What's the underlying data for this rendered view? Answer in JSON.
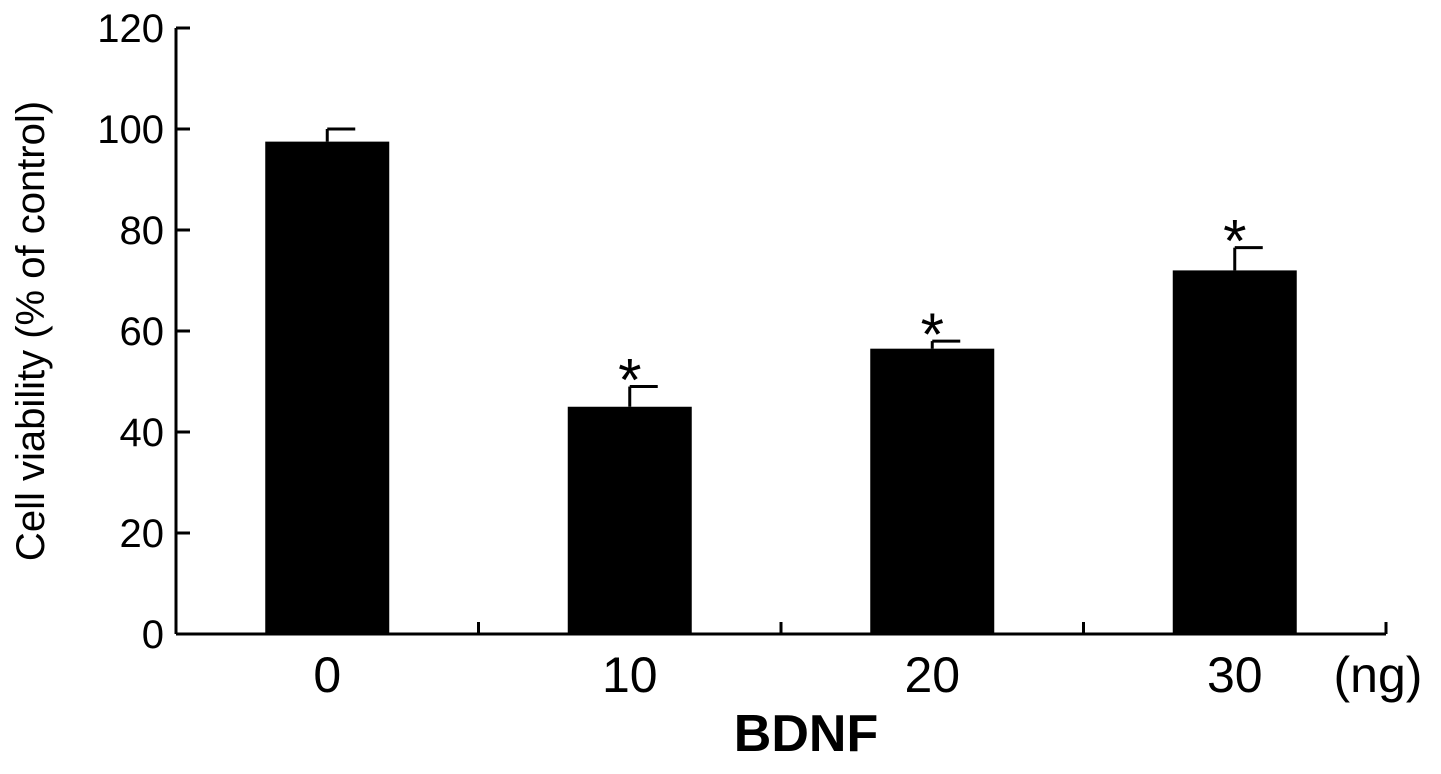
{
  "chart_data": {
    "type": "bar",
    "title": "",
    "xlabel": "BDNF",
    "x_unit": "(ng)",
    "ylabel": "Cell viability (% of control)",
    "ylim": [
      0,
      120
    ],
    "yticks": [
      0,
      20,
      40,
      60,
      80,
      100,
      120
    ],
    "grid": false,
    "legend": "none",
    "categories": [
      "0",
      "10",
      "20",
      "30"
    ],
    "values": [
      97.5,
      45,
      56.5,
      72
    ],
    "errors": [
      2.5,
      4,
      1.5,
      4.5
    ],
    "annotations": [
      "",
      "*",
      "*",
      "*"
    ],
    "bar_color": "#000000",
    "axis_color": "#000000"
  }
}
